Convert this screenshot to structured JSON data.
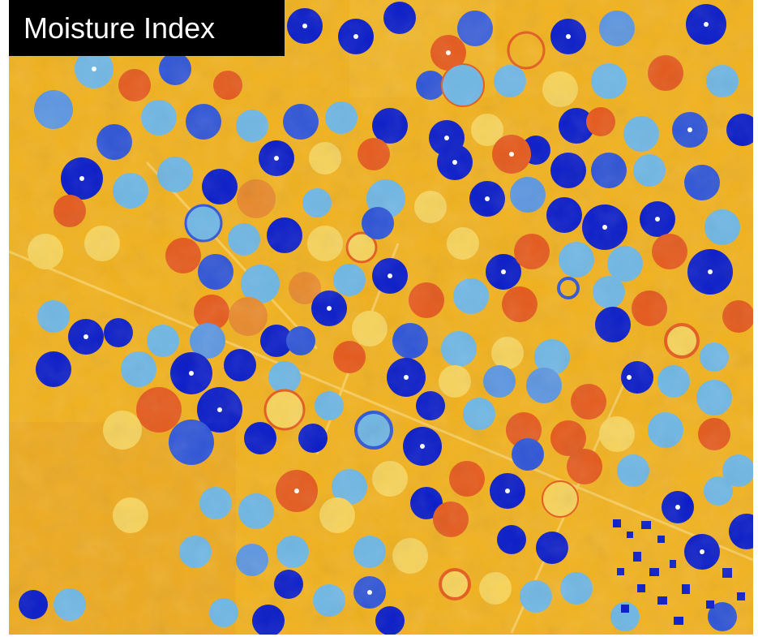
{
  "title": "Moisture Index",
  "palette": {
    "background": "#f2b21e",
    "frame_bg": "#ffffff",
    "title_bg": "#000000",
    "title_text": "#ffffff",
    "moisture_very_high": "#0a1cc8",
    "moisture_high": "#2f55d6",
    "moisture_medium": "#6fb7e4",
    "moisture_low": "#f7d35a",
    "moisture_very_low": "#e55a1c"
  }
}
